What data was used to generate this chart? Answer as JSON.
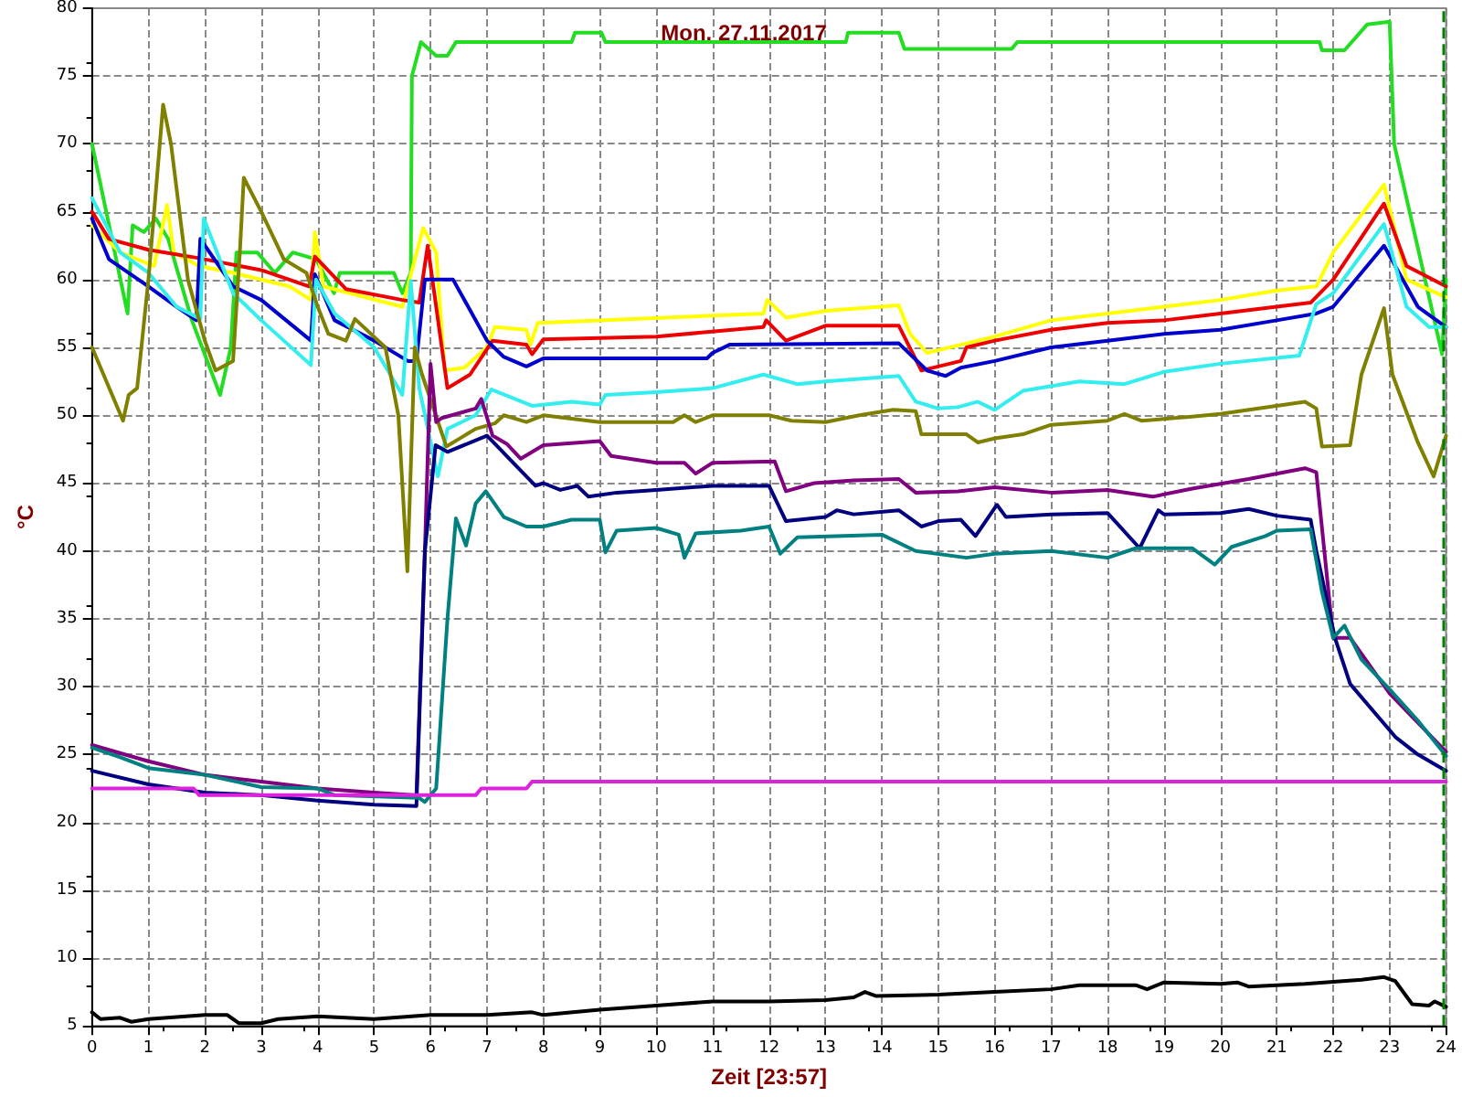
{
  "chart_data": {
    "type": "line",
    "title": "Mon. 27.11.2017",
    "xlabel": "Zeit [23:57]",
    "ylabel": "°C",
    "xlim": [
      0,
      24
    ],
    "ylim": [
      5,
      80
    ],
    "xticks": [
      0,
      1,
      2,
      3,
      4,
      5,
      6,
      7,
      8,
      9,
      10,
      11,
      12,
      13,
      14,
      15,
      16,
      17,
      18,
      19,
      20,
      21,
      22,
      23,
      24
    ],
    "yticks": [
      5,
      10,
      15,
      20,
      25,
      30,
      35,
      40,
      45,
      50,
      55,
      60,
      65,
      70,
      75,
      80
    ],
    "grid": true,
    "marker": "none",
    "line_style": "solid",
    "ref_lines": [
      {
        "axis": "x",
        "value": 23.95,
        "label": null,
        "color": "#008000",
        "line_style": "dashed"
      }
    ],
    "series": [
      {
        "color": "#22dd22",
        "x": [
          0,
          0.63,
          0.72,
          0.92,
          1.13,
          1.35,
          1.77,
          2.27,
          2.46,
          2.56,
          2.93,
          3.24,
          3.56,
          3.97,
          4.29,
          4.39,
          4.82,
          5.35,
          5.5,
          5.65,
          5.67,
          5.83,
          6.1,
          6.3,
          6.45,
          8.5,
          8.56,
          9.03,
          9.1,
          13.36,
          13.4,
          14.3,
          14.4,
          16.3,
          16.4,
          21.76,
          21.8,
          22.2,
          22.6,
          23.0,
          23.08,
          23.93,
          24
        ],
        "values": [
          70,
          57.5,
          64,
          63.5,
          64.5,
          63,
          57,
          51.5,
          55,
          62,
          62,
          60.5,
          62,
          61.5,
          59,
          60.5,
          60.5,
          60.5,
          59,
          60.5,
          75,
          77.5,
          76.5,
          76.5,
          77.5,
          77.5,
          78.2,
          78.2,
          77.5,
          77.5,
          78.2,
          78.2,
          77,
          77,
          77.5,
          77.5,
          76.9,
          76.9,
          78.8,
          79,
          70,
          54.5,
          60
        ]
      },
      {
        "color": "#ffff00",
        "x": [
          0,
          0.5,
          1.1,
          1.33,
          1.45,
          1.9,
          2.5,
          3.5,
          3.88,
          3.95,
          4.1,
          5.5,
          5.87,
          6.1,
          6.25,
          6.6,
          7.0,
          7.14,
          7.7,
          7.77,
          7.9,
          9,
          11.9,
          11.97,
          12.3,
          13,
          14.3,
          14.5,
          14.8,
          15.5,
          16,
          17,
          18,
          19,
          20,
          21,
          21.7,
          22,
          22.9,
          23.3,
          24
        ],
        "values": [
          64,
          62,
          61,
          65.5,
          62,
          61,
          60.5,
          59.5,
          58.5,
          63.5,
          59.5,
          58,
          63.8,
          62,
          53.3,
          53.5,
          55,
          56.5,
          56.3,
          55.2,
          56.8,
          57,
          57.5,
          58.5,
          57.2,
          57.7,
          58.1,
          56,
          54.6,
          55.3,
          55.8,
          57,
          57.5,
          58,
          58.5,
          59.2,
          59.5,
          62,
          67,
          60,
          58.7
        ]
      },
      {
        "color": "#ee0000",
        "x": [
          0,
          0.3,
          1,
          1.87,
          3.0,
          3.85,
          3.95,
          4.5,
          5.5,
          5.8,
          5.95,
          6.3,
          6.7,
          7.1,
          7.7,
          7.8,
          8,
          10,
          11.9,
          11.95,
          12.3,
          13,
          14.3,
          14.7,
          15.4,
          15.5,
          16,
          17,
          18,
          19,
          20,
          21.6,
          22,
          22.9,
          23.3,
          24
        ],
        "values": [
          65,
          63,
          62.2,
          61.6,
          60.7,
          59.5,
          61.7,
          59.3,
          58.5,
          58.3,
          62.5,
          52,
          53,
          55.5,
          55.2,
          54.5,
          55.6,
          55.8,
          56.5,
          57,
          55.5,
          56.6,
          56.6,
          53.3,
          54,
          55,
          55.5,
          56.3,
          56.8,
          57,
          57.5,
          58.3,
          60,
          65.6,
          61,
          59.5
        ]
      },
      {
        "color": "#0000cc",
        "x": [
          0,
          0.3,
          1,
          1.5,
          1.85,
          1.92,
          2.5,
          3,
          3.88,
          3.95,
          4.3,
          5,
          5.6,
          5.75,
          5.9,
          6.4,
          7,
          7.3,
          7.7,
          8,
          10.9,
          11.0,
          11.3,
          14.3,
          14.8,
          15.13,
          15.4,
          16,
          17,
          18,
          19,
          20,
          21,
          21.7,
          22,
          22.9,
          23.5,
          24
        ],
        "values": [
          64.5,
          61.5,
          59.5,
          58,
          57,
          63,
          59.5,
          58.5,
          55.5,
          60.4,
          57,
          55.5,
          54,
          54,
          60,
          60,
          55.5,
          54.3,
          53.6,
          54.2,
          54.2,
          54.6,
          55.2,
          55.3,
          53.3,
          52.9,
          53.5,
          54,
          55,
          55.5,
          56,
          56.3,
          57,
          57.5,
          58,
          62.5,
          58,
          56.5
        ]
      },
      {
        "color": "#33eeee",
        "x": [
          0,
          0.5,
          1,
          1.5,
          1.92,
          1.98,
          2.5,
          3,
          3.88,
          3.97,
          4.3,
          5.0,
          5.5,
          5.65,
          5.8,
          6.13,
          6.3,
          6.8,
          7.08,
          7.8,
          8.5,
          9.0,
          9.1,
          10,
          11,
          11.9,
          12.5,
          13,
          14.3,
          14.6,
          15,
          15.35,
          15.7,
          16,
          16.5,
          17.5,
          18.3,
          19,
          20,
          21.4,
          21.7,
          22,
          22.9,
          23.3,
          23.7,
          24
        ],
        "values": [
          66,
          62,
          60.5,
          58,
          57.1,
          64.5,
          59,
          57,
          53.7,
          60,
          57.5,
          55,
          51.5,
          59.9,
          52,
          45.5,
          49,
          50,
          51.9,
          50.7,
          51,
          50.8,
          51.5,
          51.7,
          52,
          53,
          52.3,
          52.5,
          52.9,
          51,
          50.5,
          50.6,
          51,
          50.4,
          51.8,
          52.5,
          52.3,
          53.2,
          53.8,
          54.4,
          58.2,
          59,
          64.1,
          58,
          56.5,
          56.5
        ]
      },
      {
        "color": "#808000",
        "x": [
          0,
          0.55,
          0.65,
          0.8,
          1.0,
          1.26,
          1.4,
          1.7,
          2.0,
          2.19,
          2.5,
          2.62,
          2.69,
          3.0,
          3.4,
          3.8,
          4.0,
          4.19,
          4.5,
          4.66,
          5.2,
          5.43,
          5.59,
          5.72,
          5.85,
          6.28,
          6.8,
          7.14,
          7.3,
          7.7,
          8.0,
          9.0,
          10.3,
          10.5,
          10.7,
          11,
          12,
          12.4,
          13,
          13.6,
          14.2,
          14.6,
          14.7,
          15.5,
          15.7,
          16,
          16.5,
          17,
          18,
          18.3,
          18.6,
          19.5,
          20,
          21.5,
          21.7,
          21.8,
          22.3,
          22.5,
          22.9,
          23.05,
          23.5,
          23.78,
          24
        ],
        "values": [
          55,
          49.6,
          51.5,
          52,
          60,
          72.9,
          70,
          60,
          55.5,
          53.3,
          54,
          62,
          67.5,
          65,
          61.5,
          60.5,
          58,
          56,
          55.5,
          57.1,
          55,
          50,
          38.5,
          55,
          53,
          47.7,
          49,
          49.4,
          50,
          49.5,
          50,
          49.5,
          49.5,
          50,
          49.5,
          50,
          50,
          49.6,
          49.5,
          50,
          50.4,
          50.3,
          48.6,
          48.6,
          48,
          48.3,
          48.6,
          49.3,
          49.6,
          50.1,
          49.6,
          49.9,
          50.1,
          51,
          50.5,
          47.7,
          47.8,
          53,
          57.9,
          53,
          48,
          45.5,
          48.5
        ]
      },
      {
        "color": "#800080",
        "x": [
          0,
          1,
          2,
          3,
          4,
          5,
          5.75,
          5.9,
          6.0,
          6.1,
          6.2,
          6.8,
          6.9,
          7.1,
          7.35,
          7.6,
          8.0,
          9.0,
          9.2,
          10,
          10.5,
          10.7,
          11,
          12.1,
          12.3,
          12.8,
          13.5,
          14.3,
          14.6,
          15.35,
          16,
          17,
          18,
          18.8,
          19.5,
          20.5,
          21.5,
          21.7,
          22.0,
          22.3,
          23,
          24
        ],
        "values": [
          25.7,
          24.5,
          23.5,
          23,
          22.5,
          22.2,
          22,
          40,
          53.8,
          49.5,
          49.8,
          50.5,
          51.2,
          48.5,
          47.9,
          46.8,
          47.8,
          48.1,
          47,
          46.5,
          46.5,
          45.7,
          46.5,
          46.6,
          44.4,
          45,
          45.2,
          45.3,
          44.3,
          44.4,
          44.7,
          44.3,
          44.5,
          44,
          44.6,
          45.3,
          46.1,
          45.8,
          33.6,
          33.6,
          29.5,
          25.2
        ]
      },
      {
        "color": "#000080",
        "x": [
          0,
          1,
          2,
          3,
          4,
          5,
          5.75,
          5.9,
          6.09,
          6.3,
          7.0,
          7.14,
          7.86,
          8.0,
          8.3,
          8.6,
          8.8,
          9.3,
          10,
          11,
          12,
          12.3,
          13,
          13.2,
          13.5,
          14.3,
          14.7,
          15,
          15.4,
          15.66,
          16.04,
          16.2,
          17,
          18,
          18.57,
          18.9,
          19,
          20,
          20.5,
          21,
          21.6,
          21.7,
          22.03,
          22.3,
          23.1,
          23.5,
          24
        ],
        "values": [
          23.8,
          22.8,
          22.2,
          22,
          21.6,
          21.3,
          21.2,
          40,
          47.8,
          47.3,
          48.5,
          47.9,
          44.8,
          45,
          44.5,
          44.8,
          44,
          44.3,
          44.5,
          44.8,
          44.8,
          42.2,
          42.5,
          43,
          42.7,
          43,
          41.8,
          42.2,
          42.3,
          41.1,
          43.4,
          42.5,
          42.7,
          42.8,
          40.2,
          43,
          42.7,
          42.8,
          43.1,
          42.6,
          42.3,
          40,
          33.6,
          30.2,
          26.3,
          25,
          23.8
        ]
      },
      {
        "color": "#008080",
        "x": [
          0,
          0.5,
          1,
          2,
          3,
          4,
          4.3,
          5.8,
          5.9,
          6.1,
          6.3,
          6.45,
          6.63,
          6.8,
          6.98,
          7.3,
          7.7,
          8,
          8.5,
          9.0,
          9.1,
          9.3,
          10,
          10.4,
          10.5,
          10.7,
          11.5,
          12.0,
          12.2,
          12.5,
          14,
          14.6,
          15.5,
          16,
          17,
          18,
          18.5,
          19.5,
          19.9,
          20.2,
          20.8,
          21,
          21.6,
          21.8,
          22.0,
          22.2,
          22.5,
          23,
          23.5,
          24
        ],
        "values": [
          25.5,
          24.8,
          24,
          23.5,
          22.6,
          22.5,
          22,
          21.8,
          21.5,
          22.5,
          35,
          42.4,
          40.4,
          43.5,
          44.4,
          42.5,
          41.8,
          41.8,
          42.3,
          42.3,
          39.9,
          41.5,
          41.7,
          41.2,
          39.5,
          41.3,
          41.5,
          41.8,
          39.8,
          41,
          41.2,
          40,
          39.5,
          39.8,
          40,
          39.5,
          40.2,
          40.2,
          39,
          40.3,
          41.1,
          41.5,
          41.6,
          37,
          33.6,
          34.5,
          32,
          29.8,
          27.5,
          24.9
        ]
      },
      {
        "color": "#dd22dd",
        "x": [
          0,
          1.8,
          1.9,
          6.8,
          6.9,
          7.7,
          7.8,
          24
        ],
        "values": [
          22.5,
          22.5,
          22,
          22,
          22.5,
          22.5,
          23,
          23
        ]
      },
      {
        "color": "#000000",
        "x": [
          0,
          0.15,
          0.5,
          0.7,
          1,
          2,
          2.4,
          2.6,
          3,
          3.3,
          4,
          5,
          6,
          7,
          7.8,
          8,
          9,
          10,
          11,
          12,
          13,
          13.5,
          13.7,
          13.9,
          15,
          16,
          17,
          17.5,
          18.5,
          18.7,
          19,
          20,
          20.3,
          20.5,
          21.5,
          22.5,
          22.9,
          23.1,
          23.4,
          23.7,
          23.8,
          24
        ],
        "values": [
          6,
          5.5,
          5.6,
          5.3,
          5.5,
          5.8,
          5.8,
          5.2,
          5.2,
          5.5,
          5.7,
          5.5,
          5.8,
          5.8,
          6,
          5.8,
          6.2,
          6.5,
          6.8,
          6.8,
          6.9,
          7.1,
          7.5,
          7.2,
          7.3,
          7.5,
          7.7,
          8,
          8,
          7.7,
          8.2,
          8.1,
          8.2,
          7.9,
          8.1,
          8.4,
          8.6,
          8.3,
          6.6,
          6.5,
          6.8,
          6.4
        ]
      }
    ]
  }
}
